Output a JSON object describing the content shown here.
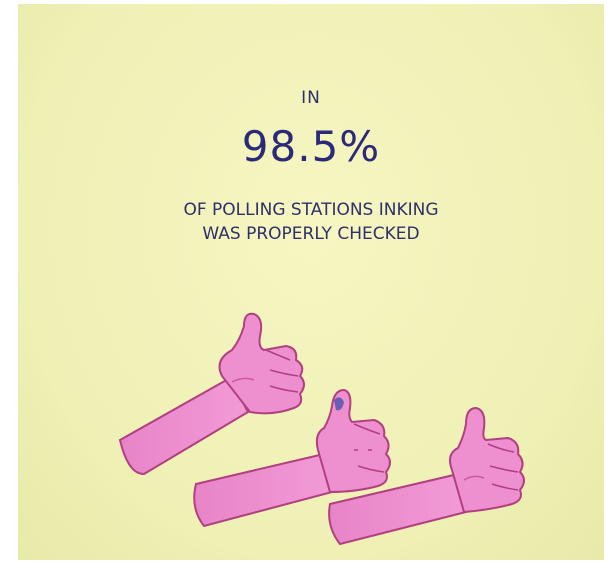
{
  "slide": {
    "line_top": "IN",
    "percentage": "98.5%",
    "line_bottom_1": "OF POLLING STATIONS INKING",
    "line_bottom_2": "WAS PROPERLY CHECKED"
  },
  "colors": {
    "background": "#f3f4bb",
    "text": "#2f2f6a",
    "hand_fill": "#ee8fd0",
    "hand_stroke": "#b0407f",
    "ink_mark": "#6b5fb4"
  },
  "illustration": {
    "icons": [
      "thumbs-up-hand-icon",
      "thumbs-up-hand-icon",
      "thumbs-up-hand-icon"
    ]
  }
}
